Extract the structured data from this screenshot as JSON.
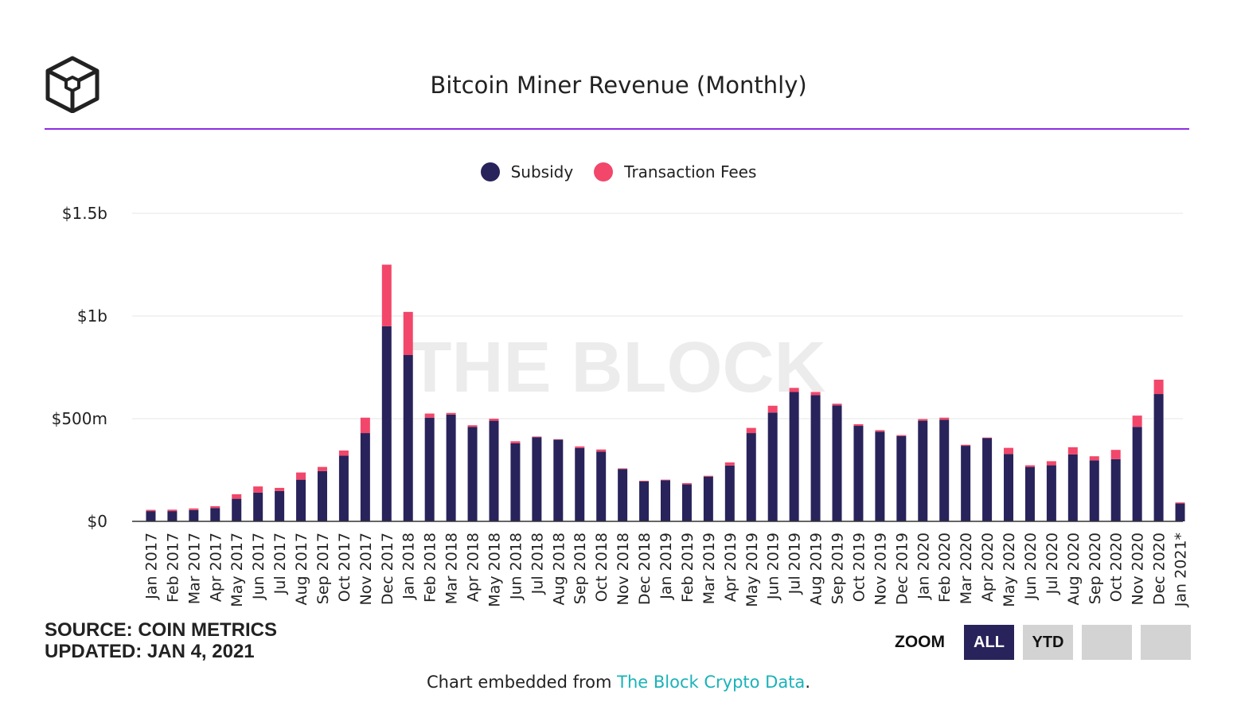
{
  "header": {
    "title": "Bitcoin Miner Revenue (Monthly)"
  },
  "legend": {
    "items": [
      {
        "label": "Subsidy",
        "color": "#28235a"
      },
      {
        "label": "Transaction Fees",
        "color": "#f2476a"
      }
    ]
  },
  "watermark": "THE BLOCK",
  "source": {
    "line1": "SOURCE: COIN METRICS",
    "line2": "UPDATED: JAN 4, 2021"
  },
  "zoom": {
    "label": "ZOOM",
    "buttons": [
      {
        "label": "ALL",
        "active": true
      },
      {
        "label": "YTD",
        "active": false
      },
      {
        "label": "",
        "active": false
      },
      {
        "label": "",
        "active": false
      }
    ]
  },
  "footer": {
    "prefix": "Chart embedded from ",
    "link": "The Block Crypto Data",
    "suffix": "."
  },
  "chart_data": {
    "type": "bar",
    "stacked": true,
    "title": "Bitcoin Miner Revenue (Monthly)",
    "xlabel": "",
    "ylabel": "",
    "ylim": [
      0,
      1500
    ],
    "yunit": "USD millions",
    "yticks": [
      {
        "value": 0,
        "label": "$0"
      },
      {
        "value": 500,
        "label": "$500m"
      },
      {
        "value": 1000,
        "label": "$1b"
      },
      {
        "value": 1500,
        "label": "$1.5b"
      }
    ],
    "grid": true,
    "legend_position": "top-center",
    "categories": [
      "Jan 2017",
      "Feb 2017",
      "Mar 2017",
      "Apr 2017",
      "May 2017",
      "Jun 2017",
      "Jul 2017",
      "Aug 2017",
      "Sep 2017",
      "Oct 2017",
      "Nov 2017",
      "Dec 2017",
      "Jan 2018",
      "Feb 2018",
      "Mar 2018",
      "Apr 2018",
      "May 2018",
      "Jun 2018",
      "Jul 2018",
      "Aug 2018",
      "Sep 2018",
      "Oct 2018",
      "Nov 2018",
      "Dec 2018",
      "Jan 2019",
      "Feb 2019",
      "Mar 2019",
      "Apr 2019",
      "May 2019",
      "Jun 2019",
      "Jul 2019",
      "Aug 2019",
      "Sep 2019",
      "Oct 2019",
      "Nov 2019",
      "Dec 2019",
      "Jan 2020",
      "Feb 2020",
      "Mar 2020",
      "Apr 2020",
      "May 2020",
      "Jun 2020",
      "Jul 2020",
      "Aug 2020",
      "Sep 2020",
      "Oct 2020",
      "Nov 2020",
      "Dec 2020",
      "Jan 2021*"
    ],
    "series": [
      {
        "name": "Subsidy",
        "color": "#28235a",
        "values": [
          50,
          50,
          55,
          65,
          110,
          140,
          148,
          203,
          245,
          320,
          430,
          950,
          810,
          505,
          520,
          460,
          490,
          380,
          410,
          398,
          357,
          340,
          255,
          195,
          200,
          180,
          218,
          272,
          430,
          530,
          630,
          615,
          565,
          465,
          437,
          415,
          490,
          495,
          368,
          405,
          328,
          265,
          273,
          326,
          297,
          303,
          460,
          620,
          87
        ]
      },
      {
        "name": "Transaction Fees",
        "color": "#f2476a",
        "values": [
          6,
          7,
          8,
          9,
          22,
          30,
          15,
          35,
          20,
          25,
          75,
          300,
          210,
          20,
          8,
          8,
          10,
          10,
          3,
          2,
          8,
          10,
          3,
          3,
          3,
          6,
          4,
          15,
          25,
          33,
          20,
          15,
          8,
          8,
          7,
          5,
          8,
          10,
          5,
          3,
          30,
          8,
          20,
          35,
          20,
          45,
          55,
          70,
          5
        ]
      }
    ]
  }
}
